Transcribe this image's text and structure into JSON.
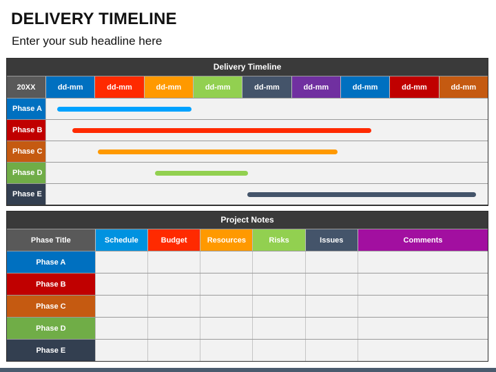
{
  "page": {
    "title": "DELIVERY TIMELINE",
    "subtitle": "Enter your sub headline here"
  },
  "timeline": {
    "header": "Delivery Timeline",
    "year": "20XX",
    "dates": [
      {
        "label": "dd-mm",
        "color": "#0070c0"
      },
      {
        "label": "dd-mm",
        "color": "#ff2a00"
      },
      {
        "label": "dd-mm",
        "color": "#ff9900"
      },
      {
        "label": "dd-mm",
        "color": "#92d050"
      },
      {
        "label": "dd-mm",
        "color": "#44546a"
      },
      {
        "label": "dd-mm",
        "color": "#7030a0"
      },
      {
        "label": "dd-mm",
        "color": "#0070c0"
      },
      {
        "label": "dd-mm",
        "color": "#c00000"
      },
      {
        "label": "dd-mm",
        "color": "#c55a11"
      }
    ],
    "phases": [
      {
        "label": "Phase A",
        "color": "#0070c0",
        "bar_color": "#00a2ff",
        "start": 0.22,
        "end": 2.96
      },
      {
        "label": "Phase B",
        "color": "#c00000",
        "bar_color": "#ff2a00",
        "start": 0.53,
        "end": 6.63
      },
      {
        "label": "Phase C",
        "color": "#c55a11",
        "bar_color": "#ff9900",
        "start": 1.05,
        "end": 5.94
      },
      {
        "label": "Phase D",
        "color": "#70ad47",
        "bar_color": "#92d050",
        "start": 2.22,
        "end": 4.12
      },
      {
        "label": "Phase E",
        "color": "#333f50",
        "bar_color": "#44546a",
        "start": 4.1,
        "end": 8.76
      }
    ]
  },
  "notes": {
    "header": "Project Notes",
    "columns": [
      {
        "label": "Phase Title",
        "color": "#595959"
      },
      {
        "label": "Schedule",
        "color": "#0092e0"
      },
      {
        "label": "Budget",
        "color": "#ff2a00"
      },
      {
        "label": "Resources",
        "color": "#ff9900"
      },
      {
        "label": "Risks",
        "color": "#92d050"
      },
      {
        "label": "Issues",
        "color": "#44546a"
      },
      {
        "label": "Comments",
        "color": "#a20fa0"
      }
    ],
    "rows": [
      {
        "label": "Phase A",
        "color": "#0070c0"
      },
      {
        "label": "Phase B",
        "color": "#c00000"
      },
      {
        "label": "Phase C",
        "color": "#c55a11"
      },
      {
        "label": "Phase D",
        "color": "#70ad47"
      },
      {
        "label": "Phase E",
        "color": "#333f50"
      }
    ]
  }
}
